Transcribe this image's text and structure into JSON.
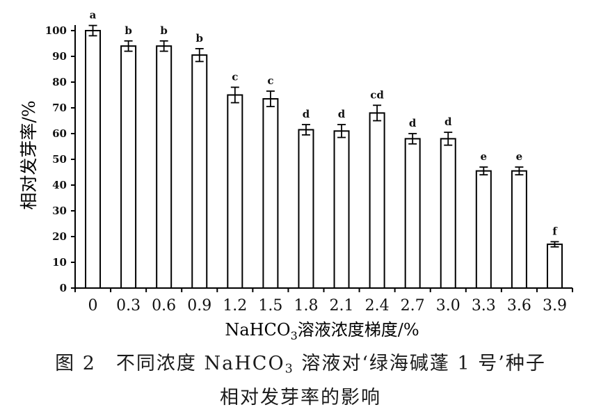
{
  "chart_data": {
    "type": "bar",
    "categories": [
      "0",
      "0.3",
      "0.6",
      "0.9",
      "1.2",
      "1.5",
      "1.8",
      "2.1",
      "2.4",
      "2.7",
      "3.0",
      "3.3",
      "3.6",
      "3.9"
    ],
    "values": [
      100,
      94,
      94,
      90.5,
      75,
      73.5,
      61.5,
      61,
      68,
      58,
      58,
      45.5,
      45.5,
      17
    ],
    "errors": [
      2,
      2,
      2,
      2.5,
      3,
      3,
      2,
      2.5,
      3,
      2,
      2.5,
      1.5,
      1.5,
      1
    ],
    "significance_letters": [
      "a",
      "b",
      "b",
      "b",
      "c",
      "c",
      "d",
      "d",
      "cd",
      "d",
      "d",
      "e",
      "e",
      "f"
    ],
    "ylabel": "相对发芽率/%",
    "xlabel_parts": {
      "pre": "NaHCO",
      "sub": "3",
      "post": "溶液浓度梯度/%"
    },
    "ylim": [
      0,
      100
    ],
    "yticks": [
      0,
      10,
      20,
      30,
      40,
      50,
      60,
      70,
      80,
      90,
      100
    ],
    "grid": false,
    "bar_fill": "#ffffff",
    "bar_stroke": "#000000"
  },
  "caption": {
    "line1_pre": "图 2　不同浓度 NaHCO",
    "line1_sub": "3",
    "line1_post": " 溶液对‘绿海碱蓬 1 号’种子",
    "line2": "相对发芽率的影响"
  }
}
